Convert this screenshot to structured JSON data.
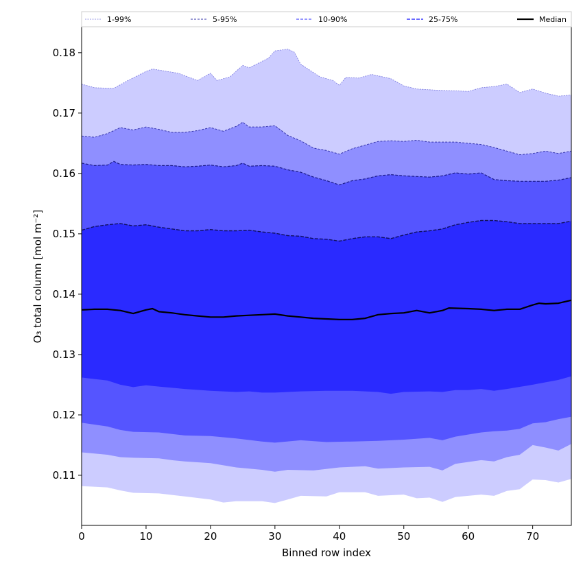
{
  "chart_data": {
    "type": "area",
    "title": "",
    "xlabel": "Binned row index",
    "ylabel": "O₃ total column [mol m⁻²]",
    "xlim": [
      0,
      76
    ],
    "ylim": [
      0.1017,
      0.1843
    ],
    "xticks": [
      "0",
      "10",
      "20",
      "30",
      "40",
      "50",
      "60",
      "70"
    ],
    "yticks": [
      "0.11",
      "0.12",
      "0.13",
      "0.14",
      "0.15",
      "0.16",
      "0.17",
      "0.18"
    ],
    "grid": false,
    "legend_position": "top",
    "legend": [
      {
        "label": "1-99%",
        "style": "dotted-thin"
      },
      {
        "label": "5-95%",
        "style": "dashed-thin"
      },
      {
        "label": "10-90%",
        "style": "dashed"
      },
      {
        "label": "25-75%",
        "style": "dashed-thick"
      },
      {
        "label": "Median",
        "style": "solid"
      }
    ],
    "colors": {
      "band_1_99": "#ccccff",
      "band_5_95": "#8f8fff",
      "band_10_90": "#5555ff",
      "band_25_75": "#2a2aff",
      "edge_1_99": "#7777dd",
      "edge_5_95": "#3333aa",
      "edge_10_90": "#1a1a88",
      "edge_25_75": "#101060",
      "median": "#000000"
    },
    "series": [
      {
        "name": "p99",
        "x": [
          0,
          2,
          5,
          7,
          10,
          11,
          15,
          18,
          20,
          21,
          23,
          25,
          26,
          29,
          30,
          32,
          33,
          34,
          37,
          39,
          40,
          41,
          43,
          45,
          48,
          50,
          52,
          55,
          60,
          62,
          64,
          66,
          68,
          70,
          72,
          74,
          76
        ],
        "y": [
          0.1748,
          0.1742,
          0.1741,
          0.1753,
          0.1769,
          0.1773,
          0.1766,
          0.1754,
          0.1766,
          0.1754,
          0.176,
          0.1779,
          0.1775,
          0.1791,
          0.1803,
          0.1806,
          0.1801,
          0.1781,
          0.176,
          0.1754,
          0.1746,
          0.1759,
          0.1758,
          0.1764,
          0.1757,
          0.1745,
          0.174,
          0.1738,
          0.1736,
          0.1742,
          0.1744,
          0.1748,
          0.1734,
          0.174,
          0.1733,
          0.1728,
          0.173
        ]
      },
      {
        "name": "p95",
        "x": [
          0,
          2,
          4,
          6,
          8,
          10,
          12,
          14,
          16,
          18,
          20,
          22,
          24,
          25,
          26,
          28,
          30,
          32,
          34,
          36,
          38,
          40,
          42,
          44,
          46,
          48,
          50,
          52,
          54,
          56,
          58,
          60,
          62,
          64,
          66,
          68,
          70,
          72,
          74,
          76
        ],
        "y": [
          0.1662,
          0.166,
          0.1666,
          0.1676,
          0.1672,
          0.1677,
          0.1673,
          0.1668,
          0.1668,
          0.1671,
          0.1676,
          0.167,
          0.1678,
          0.1685,
          0.1677,
          0.1677,
          0.1679,
          0.1663,
          0.1654,
          0.1642,
          0.1638,
          0.1632,
          0.1641,
          0.1647,
          0.1653,
          0.1654,
          0.1653,
          0.1655,
          0.1652,
          0.1652,
          0.1652,
          0.165,
          0.1648,
          0.1643,
          0.1637,
          0.1631,
          0.1633,
          0.1637,
          0.1633,
          0.1637
        ]
      },
      {
        "name": "p90",
        "x": [
          0,
          2,
          4,
          5,
          6,
          8,
          10,
          12,
          14,
          16,
          18,
          20,
          22,
          24,
          25,
          26,
          28,
          30,
          32,
          34,
          36,
          38,
          40,
          42,
          44,
          46,
          48,
          50,
          52,
          54,
          56,
          58,
          60,
          62,
          64,
          66,
          68,
          70,
          72,
          74,
          76
        ],
        "y": [
          0.1617,
          0.1613,
          0.1614,
          0.162,
          0.1615,
          0.1614,
          0.1615,
          0.1613,
          0.1613,
          0.1611,
          0.1612,
          0.1614,
          0.1611,
          0.1613,
          0.1617,
          0.1612,
          0.1613,
          0.1612,
          0.1606,
          0.1602,
          0.1594,
          0.1588,
          0.1581,
          0.1588,
          0.1591,
          0.1596,
          0.1598,
          0.1596,
          0.1595,
          0.1594,
          0.1596,
          0.1601,
          0.1599,
          0.1601,
          0.159,
          0.1588,
          0.1587,
          0.1587,
          0.1587,
          0.1589,
          0.1593
        ]
      },
      {
        "name": "p75",
        "x": [
          0,
          2,
          4,
          6,
          8,
          10,
          12,
          14,
          16,
          18,
          20,
          22,
          24,
          26,
          28,
          30,
          32,
          34,
          36,
          38,
          40,
          42,
          44,
          46,
          48,
          50,
          52,
          54,
          56,
          58,
          60,
          62,
          64,
          66,
          68,
          70,
          72,
          74,
          76
        ],
        "y": [
          0.1506,
          0.1512,
          0.1515,
          0.1517,
          0.1513,
          0.1515,
          0.1511,
          0.1508,
          0.1505,
          0.1505,
          0.1507,
          0.1505,
          0.1505,
          0.1506,
          0.1503,
          0.1501,
          0.1497,
          0.1496,
          0.1492,
          0.1491,
          0.1488,
          0.1492,
          0.1495,
          0.1495,
          0.1492,
          0.1498,
          0.1503,
          0.1505,
          0.1508,
          0.1515,
          0.1519,
          0.1522,
          0.1522,
          0.152,
          0.1517,
          0.1517,
          0.1517,
          0.1517,
          0.1521
        ]
      },
      {
        "name": "median",
        "x": [
          0,
          2,
          4,
          6,
          8,
          10,
          11,
          12,
          14,
          16,
          18,
          20,
          22,
          24,
          26,
          28,
          30,
          32,
          34,
          36,
          38,
          40,
          42,
          44,
          46,
          48,
          50,
          52,
          54,
          56,
          57,
          60,
          62,
          64,
          66,
          68,
          70,
          71,
          72,
          74,
          76
        ],
        "y": [
          0.1374,
          0.1375,
          0.1375,
          0.1373,
          0.1368,
          0.1374,
          0.1376,
          0.1371,
          0.1369,
          0.1366,
          0.1364,
          0.1362,
          0.1362,
          0.1364,
          0.1365,
          0.1366,
          0.1367,
          0.1364,
          0.1362,
          0.136,
          0.1359,
          0.1358,
          0.1358,
          0.136,
          0.1366,
          0.1368,
          0.1369,
          0.1373,
          0.1369,
          0.1373,
          0.1377,
          0.1376,
          0.1375,
          0.1373,
          0.1375,
          0.1375,
          0.1382,
          0.1385,
          0.1384,
          0.1385,
          0.139
        ]
      },
      {
        "name": "p25",
        "x": [
          0,
          4,
          6,
          8,
          10,
          12,
          16,
          20,
          24,
          26,
          28,
          30,
          34,
          38,
          42,
          46,
          48,
          50,
          54,
          56,
          58,
          60,
          62,
          64,
          66,
          70,
          72,
          74,
          76
        ],
        "y": [
          0.1262,
          0.1257,
          0.125,
          0.1246,
          0.1249,
          0.1247,
          0.1243,
          0.124,
          0.1238,
          0.1239,
          0.1237,
          0.1237,
          0.1239,
          0.124,
          0.124,
          0.1238,
          0.1235,
          0.1238,
          0.1239,
          0.1238,
          0.1241,
          0.1241,
          0.1243,
          0.124,
          0.1243,
          0.125,
          0.1254,
          0.1258,
          0.1264
        ]
      },
      {
        "name": "p10",
        "x": [
          0,
          4,
          6,
          8,
          12,
          16,
          20,
          24,
          28,
          30,
          34,
          38,
          42,
          46,
          50,
          54,
          56,
          58,
          62,
          64,
          66,
          68,
          70,
          72,
          74,
          76
        ],
        "y": [
          0.1187,
          0.1181,
          0.1175,
          0.1172,
          0.1171,
          0.1166,
          0.1165,
          0.1161,
          0.1156,
          0.1154,
          0.1158,
          0.1155,
          0.1156,
          0.1157,
          0.1159,
          0.1162,
          0.1158,
          0.1164,
          0.1171,
          0.1173,
          0.1174,
          0.1177,
          0.1186,
          0.1188,
          0.1193,
          0.1197
        ]
      },
      {
        "name": "p5",
        "x": [
          0,
          4,
          6,
          8,
          12,
          14,
          16,
          20,
          24,
          28,
          30,
          32,
          36,
          40,
          44,
          46,
          50,
          54,
          56,
          58,
          62,
          64,
          66,
          68,
          70,
          72,
          74,
          76
        ],
        "y": [
          0.1138,
          0.1134,
          0.113,
          0.1129,
          0.1128,
          0.1125,
          0.1123,
          0.112,
          0.1113,
          0.1109,
          0.1106,
          0.1109,
          0.1108,
          0.1113,
          0.1115,
          0.1111,
          0.1113,
          0.1114,
          0.1108,
          0.1119,
          0.1125,
          0.1123,
          0.113,
          0.1134,
          0.115,
          0.1146,
          0.1141,
          0.1152
        ]
      },
      {
        "name": "p1",
        "x": [
          0,
          4,
          6,
          8,
          12,
          16,
          20,
          22,
          24,
          28,
          30,
          32,
          34,
          38,
          40,
          44,
          46,
          50,
          52,
          54,
          56,
          58,
          62,
          64,
          66,
          68,
          70,
          72,
          74,
          76
        ],
        "y": [
          0.1082,
          0.108,
          0.1075,
          0.1071,
          0.107,
          0.1065,
          0.106,
          0.1055,
          0.1057,
          0.1057,
          0.1054,
          0.106,
          0.1066,
          0.1065,
          0.1072,
          0.1072,
          0.1066,
          0.1068,
          0.1062,
          0.1063,
          0.1056,
          0.1064,
          0.1068,
          0.1066,
          0.1074,
          0.1077,
          0.1093,
          0.1092,
          0.1088,
          0.1094
        ]
      }
    ]
  }
}
